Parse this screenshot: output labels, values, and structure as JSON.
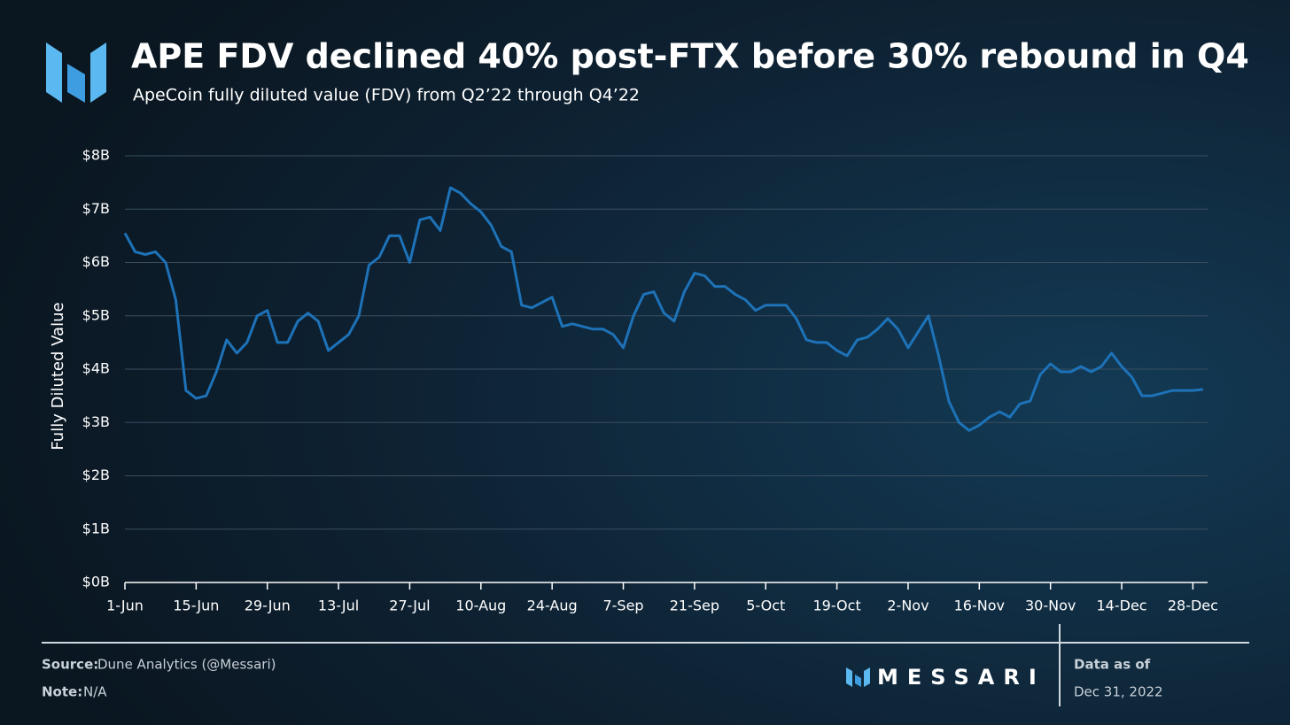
{
  "chart_data": {
    "type": "line",
    "title": "APE FDV declined 40% post-FTX before 30% rebound in Q4",
    "subtitle": "ApeCoin fully diluted value (FDV) from Q2’22 through Q4’22",
    "y_label": "Fully Diluted Value",
    "color": "#1d72b8",
    "grid": true,
    "ylim": [
      0,
      8
    ],
    "yticks": [
      {
        "value": 0,
        "label": "$0B"
      },
      {
        "value": 1,
        "label": "$1B"
      },
      {
        "value": 2,
        "label": "$2B"
      },
      {
        "value": 3,
        "label": "$3B"
      },
      {
        "value": 4,
        "label": "$4B"
      },
      {
        "value": 5,
        "label": "$5B"
      },
      {
        "value": 6,
        "label": "$6B"
      },
      {
        "value": 7,
        "label": "$7B"
      },
      {
        "value": 8,
        "label": "$8B"
      }
    ],
    "categories": [
      "1-Jun",
      null,
      null,
      null,
      null,
      null,
      null,
      "15-Jun",
      null,
      null,
      null,
      null,
      null,
      null,
      "29-Jun",
      null,
      null,
      null,
      null,
      null,
      null,
      "13-Jul",
      null,
      null,
      null,
      null,
      null,
      null,
      "27-Jul",
      null,
      null,
      null,
      null,
      null,
      null,
      "10-Aug",
      null,
      null,
      null,
      null,
      null,
      null,
      "24-Aug",
      null,
      null,
      null,
      null,
      null,
      null,
      "7-Sep",
      null,
      null,
      null,
      null,
      null,
      null,
      "21-Sep",
      null,
      null,
      null,
      null,
      null,
      null,
      "5-Oct",
      null,
      null,
      null,
      null,
      null,
      null,
      "19-Oct",
      null,
      null,
      null,
      null,
      null,
      null,
      "2-Nov",
      null,
      null,
      null,
      null,
      null,
      null,
      "16-Nov",
      null,
      null,
      null,
      null,
      null,
      null,
      "30-Nov",
      null,
      null,
      null,
      null,
      null,
      null,
      "14-Dec",
      null,
      null,
      null,
      null,
      null,
      null,
      "28-Dec",
      null
    ],
    "values": [
      6.55,
      6.2,
      6.15,
      6.2,
      6.0,
      5.3,
      3.6,
      3.45,
      3.5,
      3.95,
      4.55,
      4.3,
      4.5,
      5.0,
      5.1,
      4.5,
      4.5,
      4.9,
      5.05,
      4.9,
      4.35,
      4.5,
      4.65,
      5.0,
      5.95,
      6.1,
      6.5,
      6.5,
      6.0,
      6.8,
      6.85,
      6.6,
      7.4,
      7.3,
      7.1,
      6.95,
      6.7,
      6.3,
      6.2,
      5.2,
      5.15,
      5.25,
      5.35,
      4.8,
      4.85,
      4.8,
      4.75,
      4.75,
      4.65,
      4.4,
      5.0,
      5.4,
      5.45,
      5.05,
      4.9,
      5.45,
      5.8,
      5.75,
      5.55,
      5.55,
      5.4,
      5.3,
      5.1,
      5.2,
      5.2,
      5.2,
      4.95,
      4.55,
      4.5,
      4.5,
      4.35,
      4.25,
      4.55,
      4.6,
      4.75,
      4.95,
      4.75,
      4.4,
      4.7,
      5.0,
      4.25,
      3.4,
      3.0,
      2.85,
      2.95,
      3.1,
      3.2,
      3.1,
      3.35,
      3.4,
      3.9,
      4.1,
      3.95,
      3.95,
      4.05,
      3.95,
      4.05,
      4.3,
      4.05,
      3.85,
      3.5,
      3.5,
      3.55,
      3.6,
      3.6,
      3.6,
      3.62
    ]
  },
  "footer": {
    "source_label": "Source:",
    "source": "Dune Analytics (@Messari)",
    "note_label": "Note:",
    "note": "N/A",
    "brand": "MESSARI",
    "date_label": "Data as of",
    "date": "Dec 31, 2022"
  }
}
